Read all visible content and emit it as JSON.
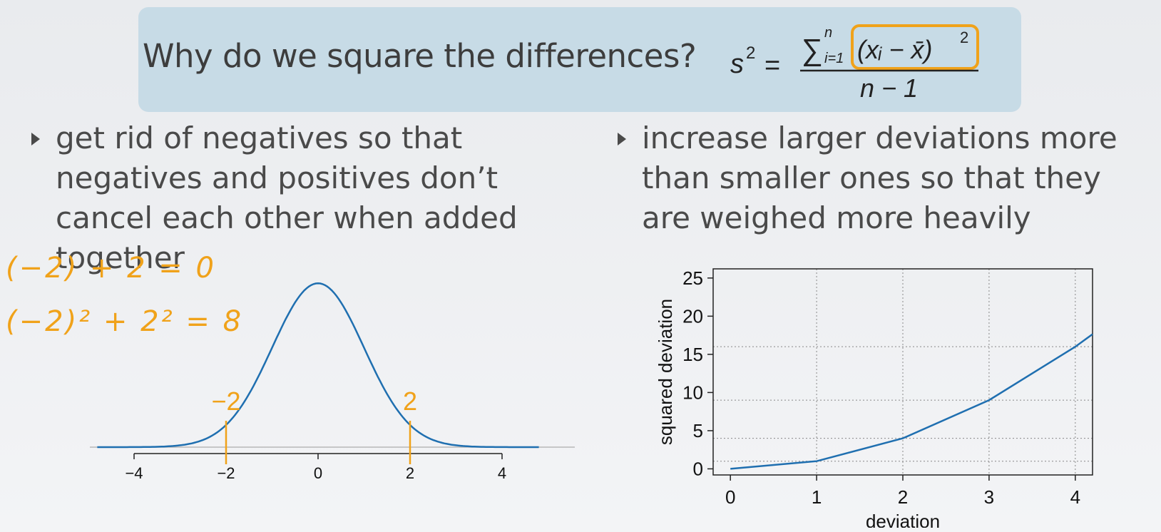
{
  "slide": {
    "title": "Why do we square the differences?",
    "bullets": [
      "get rid of negatives so that negatives and positives don’t cancel each other when added together",
      "increase larger deviations more than smaller ones so that they are weighed more heavily"
    ],
    "handwritten": [
      "(−2) + 2 = 0",
      "(−2)² + 2² = 8"
    ],
    "accent_color": "#f0a21a",
    "curve_color": "#1f6fb0",
    "header_bg": "#c7dbe6"
  },
  "formula": {
    "lhs": "s",
    "lhs_exp": "2",
    "equals": "=",
    "sigma": "∑",
    "sub": "i=1",
    "sup": "n",
    "term": "(xᵢ − x̄)",
    "term_exp": "2",
    "denominator": "n − 1"
  },
  "chart_data": [
    {
      "type": "line",
      "series": [
        {
          "x": [
            -4.8,
            -4.4,
            -4,
            -3.6,
            -3.2,
            -2.8,
            -2.4,
            -2,
            -1.6,
            -1.2,
            -0.8,
            -0.4,
            0,
            0.4,
            0.8,
            1.2,
            1.6,
            2,
            2.4,
            2.8,
            3.2,
            3.6,
            4,
            4.4,
            4.8
          ],
          "values": [
            0.0,
            0.0,
            0.0001,
            0.0006,
            0.0024,
            0.0079,
            0.0224,
            0.054,
            0.1109,
            0.1942,
            0.2897,
            0.3683,
            0.3989,
            0.3683,
            0.2897,
            0.1942,
            0.1109,
            0.054,
            0.0224,
            0.0079,
            0.0024,
            0.0006,
            0.0001,
            0.0,
            0.0
          ]
        }
      ],
      "x_ticks": [
        -4,
        -2,
        0,
        2,
        4
      ],
      "tick_labels": [
        "−4",
        "−2",
        "0",
        "2",
        "4"
      ],
      "xlim": [
        -5,
        5.2
      ],
      "markers": [
        {
          "x": -2,
          "label": "−2"
        },
        {
          "x": 2,
          "label": "2"
        }
      ]
    },
    {
      "type": "line",
      "series": [
        {
          "x": [
            0,
            1,
            2,
            3,
            4,
            4.2
          ],
          "values": [
            0,
            1,
            4,
            9,
            16,
            17.64
          ]
        }
      ],
      "xlabel": "deviation",
      "ylabel": "squared deviation",
      "x_ticks": [
        0,
        1,
        2,
        3,
        4
      ],
      "y_ticks": [
        0,
        5,
        10,
        15,
        20,
        25
      ],
      "xlim": [
        -0.2,
        4.2
      ],
      "ylim": [
        -0.8,
        26.2
      ],
      "grid": "dotted at x = 1, 2, 3, 4 and y = 1, 4, 9, 16"
    }
  ]
}
